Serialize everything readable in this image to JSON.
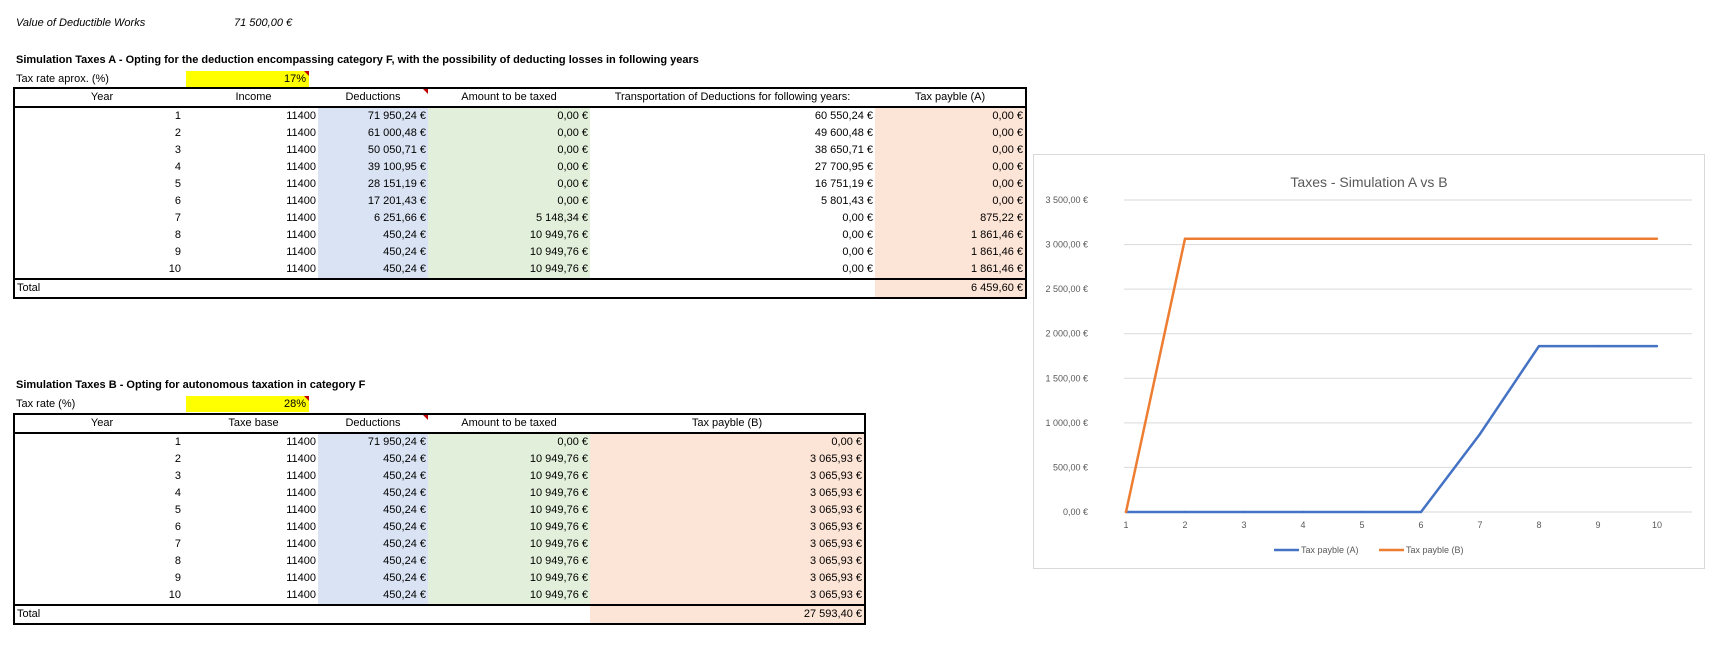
{
  "header": {
    "label": "Value of Deductible Works",
    "value": "71 500,00 €"
  },
  "simA": {
    "title": "Simulation Taxes A - Opting for the deduction encompassing category F, with the possibility of deducting losses in following years",
    "rate_label": "Tax rate aprox. (%)",
    "rate_value": "17%",
    "columns": [
      "Year",
      "Income",
      "Deductions",
      "Amount to be taxed",
      "Transportation of Deductions for following years:",
      "Tax payble (A)"
    ],
    "rows": [
      [
        "1",
        "11400",
        "71 950,24 €",
        "0,00 €",
        "60 550,24 €",
        "0,00 €"
      ],
      [
        "2",
        "11400",
        "61 000,48 €",
        "0,00 €",
        "49 600,48 €",
        "0,00 €"
      ],
      [
        "3",
        "11400",
        "50 050,71 €",
        "0,00 €",
        "38 650,71 €",
        "0,00 €"
      ],
      [
        "4",
        "11400",
        "39 100,95 €",
        "0,00 €",
        "27 700,95 €",
        "0,00 €"
      ],
      [
        "5",
        "11400",
        "28 151,19 €",
        "0,00 €",
        "16 751,19 €",
        "0,00 €"
      ],
      [
        "6",
        "11400",
        "17 201,43 €",
        "0,00 €",
        "5 801,43 €",
        "0,00 €"
      ],
      [
        "7",
        "11400",
        "6 251,66 €",
        "5 148,34 €",
        "0,00 €",
        "875,22 €"
      ],
      [
        "8",
        "11400",
        "450,24 €",
        "10 949,76 €",
        "0,00 €",
        "1 861,46 €"
      ],
      [
        "9",
        "11400",
        "450,24 €",
        "10 949,76 €",
        "0,00 €",
        "1 861,46 €"
      ],
      [
        "10",
        "11400",
        "450,24 €",
        "10 949,76 €",
        "0,00 €",
        "1 861,46 €"
      ]
    ],
    "total_label": "Total",
    "total_value": "6 459,60 €"
  },
  "simB": {
    "title": "Simulation Taxes B - Opting for autonomous taxation in category F",
    "rate_label": "Tax rate (%)",
    "rate_value": "28%",
    "columns": [
      "Year",
      "Taxe base",
      "Deductions",
      "Amount to be taxed",
      "Tax payble (B)"
    ],
    "rows": [
      [
        "1",
        "11400",
        "71 950,24 €",
        "0,00 €",
        "0,00 €"
      ],
      [
        "2",
        "11400",
        "450,24 €",
        "10 949,76 €",
        "3 065,93 €"
      ],
      [
        "3",
        "11400",
        "450,24 €",
        "10 949,76 €",
        "3 065,93 €"
      ],
      [
        "4",
        "11400",
        "450,24 €",
        "10 949,76 €",
        "3 065,93 €"
      ],
      [
        "5",
        "11400",
        "450,24 €",
        "10 949,76 €",
        "3 065,93 €"
      ],
      [
        "6",
        "11400",
        "450,24 €",
        "10 949,76 €",
        "3 065,93 €"
      ],
      [
        "7",
        "11400",
        "450,24 €",
        "10 949,76 €",
        "3 065,93 €"
      ],
      [
        "8",
        "11400",
        "450,24 €",
        "10 949,76 €",
        "3 065,93 €"
      ],
      [
        "9",
        "11400",
        "450,24 €",
        "10 949,76 €",
        "3 065,93 €"
      ],
      [
        "10",
        "11400",
        "450,24 €",
        "10 949,76 €",
        "3 065,93 €"
      ]
    ],
    "total_label": "Total",
    "total_value": "27 593,40 €"
  },
  "chart_data": {
    "type": "line",
    "title": "Taxes - Simulation A vs B",
    "x": [
      1,
      2,
      3,
      4,
      5,
      6,
      7,
      8,
      9,
      10
    ],
    "x_tick_labels": [
      "1",
      "2",
      "3",
      "4",
      "5",
      "6",
      "7",
      "8",
      "9",
      "10"
    ],
    "y_tick_labels": [
      "0,00 €",
      "500,00 €",
      "1 000,00 €",
      "1 500,00 €",
      "2 000,00 €",
      "2 500,00 €",
      "3 000,00 €",
      "3 500,00 €"
    ],
    "ylim": [
      0,
      3500
    ],
    "grid": true,
    "legend": "bottom",
    "series": [
      {
        "name": "Tax payble (A)",
        "color": "#4472c4",
        "values": [
          0,
          0,
          0,
          0,
          0,
          0,
          875.22,
          1861.46,
          1861.46,
          1861.46
        ]
      },
      {
        "name": "Tax payble (B)",
        "color": "#ed7d31",
        "values": [
          0,
          3065.93,
          3065.93,
          3065.93,
          3065.93,
          3065.93,
          3065.93,
          3065.93,
          3065.93,
          3065.93
        ]
      }
    ]
  }
}
